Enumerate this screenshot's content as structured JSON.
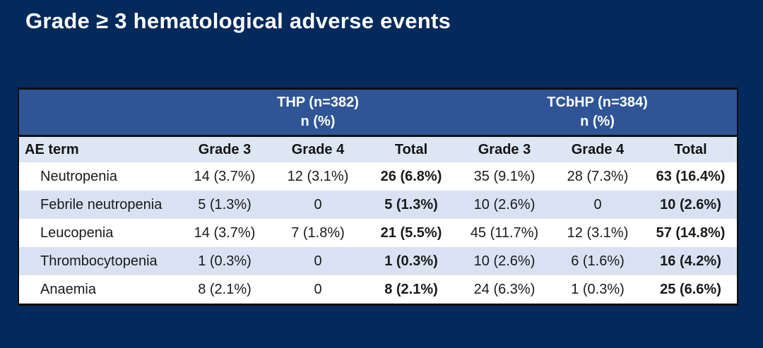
{
  "slide": {
    "title": "Grade ≥ 3 hematological adverse events",
    "background_color": "#04295b"
  },
  "table": {
    "colors": {
      "group_header_blue": "#2f5597",
      "column_header_bg": "#dde6f3",
      "row_alt_blue": "#d9e2f3",
      "row_white": "#ffffff",
      "border_black": "#0f0f0f"
    },
    "group_headers": [
      {
        "line1": "THP (n=382)",
        "line2": "n (%)"
      },
      {
        "line1": "TCbHP (n=384)",
        "line2": "n (%)"
      }
    ],
    "column_headers": [
      "AE term",
      "Grade 3",
      "Grade 4",
      "Total",
      "Grade 3",
      "Grade 4",
      "Total"
    ],
    "rows": [
      {
        "term": "Neutropenia",
        "values": [
          "14 (3.7%)",
          "12 (3.1%)",
          "26 (6.8%)",
          "35 (9.1%)",
          "28 (7.3%)",
          "63 (16.4%)"
        ]
      },
      {
        "term": "Febrile neutropenia",
        "values": [
          "5 (1.3%)",
          "0",
          "5 (1.3%)",
          "10 (2.6%)",
          "0",
          "10 (2.6%)"
        ]
      },
      {
        "term": "Leucopenia",
        "values": [
          "14 (3.7%)",
          "7 (1.8%)",
          "21 (5.5%)",
          "45 (11.7%)",
          "12 (3.1%)",
          "57 (14.8%)"
        ]
      },
      {
        "term": "Thrombocytopenia",
        "values": [
          "1 (0.3%)",
          "0",
          "1 (0.3%)",
          "10 (2.6%)",
          "6 (1.6%)",
          "16 (4.2%)"
        ]
      },
      {
        "term": "Anaemia",
        "values": [
          "8 (2.1%)",
          "0",
          "8 (2.1%)",
          "24 (6.3%)",
          "1 (0.3%)",
          "25 (6.6%)"
        ]
      }
    ]
  }
}
